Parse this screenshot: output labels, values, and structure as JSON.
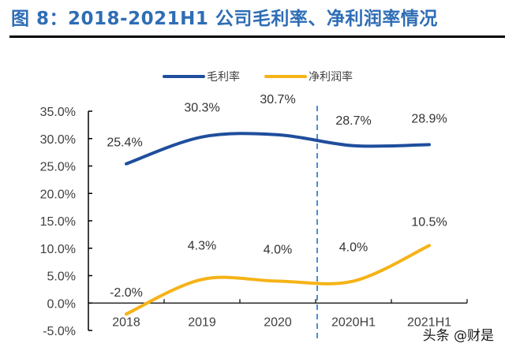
{
  "title": "图 8：2018-2021H1 公司毛利率、净利润率情况",
  "watermark": "头条 @财是",
  "chart_data": {
    "type": "line",
    "title": "图 8：2018-2021H1 公司毛利率、净利润率情况",
    "xlabel": "",
    "ylabel": "",
    "categories": [
      "2018",
      "2019",
      "2020",
      "2020H1",
      "2021H1"
    ],
    "ylim": [
      -5.0,
      35.0
    ],
    "yticks": [
      -5.0,
      0.0,
      5.0,
      10.0,
      15.0,
      20.0,
      25.0,
      30.0,
      35.0
    ],
    "ytick_labels": [
      "-5.0%",
      "0.0%",
      "5.0%",
      "10.0%",
      "15.0%",
      "20.0%",
      "25.0%",
      "30.0%",
      "35.0%"
    ],
    "grid": false,
    "legend_position": "top-center",
    "smooth": true,
    "divider_between": [
      "2020",
      "2020H1"
    ],
    "series": [
      {
        "name": "毛利率",
        "color": "#1f4e9c",
        "values": [
          25.4,
          30.3,
          30.7,
          28.7,
          28.9
        ],
        "labels": [
          "25.4%",
          "30.3%",
          "30.7%",
          "28.7%",
          "28.9%"
        ]
      },
      {
        "name": "净利润率",
        "color": "#f5b317",
        "values": [
          -2.0,
          4.3,
          4.0,
          4.0,
          10.5
        ],
        "labels": [
          "-2.0%",
          "4.3%",
          "4.0%",
          "4.0%",
          "10.5%"
        ]
      }
    ],
    "divider_color": "#4a8fd0"
  }
}
